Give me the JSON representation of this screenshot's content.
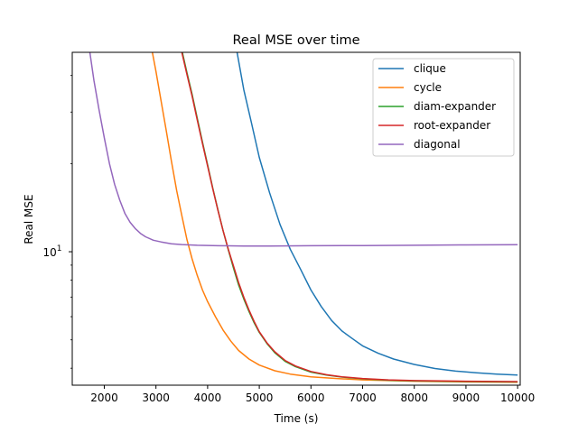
{
  "chart_data": {
    "type": "line",
    "title": "Real MSE over time",
    "xlabel": "Time (s)",
    "ylabel": "Real MSE",
    "xlim": [
      1380,
      10050
    ],
    "ylim": [
      3.5,
      48
    ],
    "yscale": "log",
    "grid": false,
    "legend_position": "top-right",
    "x_ticks": [
      {
        "value": 2000,
        "label": "2000"
      },
      {
        "value": 3000,
        "label": "3000"
      },
      {
        "value": 4000,
        "label": "4000"
      },
      {
        "value": 5000,
        "label": "5000"
      },
      {
        "value": 6000,
        "label": "6000"
      },
      {
        "value": 7000,
        "label": "7000"
      },
      {
        "value": 8000,
        "label": "8000"
      },
      {
        "value": 9000,
        "label": "9000"
      },
      {
        "value": 10000,
        "label": "10000"
      }
    ],
    "y_ticks": [
      {
        "value": 10,
        "label": "10",
        "superscript": "1"
      }
    ],
    "series": [
      {
        "name": "clique",
        "color": "#1f77b4",
        "x": [
          4570,
          4700,
          4850,
          5000,
          5200,
          5400,
          5600,
          5800,
          6000,
          6200,
          6400,
          6600,
          6800,
          7000,
          7300,
          7600,
          8000,
          8400,
          8800,
          9200,
          9600,
          10000
        ],
        "y": [
          48,
          35.8,
          27.5,
          21.0,
          15.9,
          12.4,
          10.2,
          8.7,
          7.4,
          6.5,
          5.82,
          5.36,
          5.05,
          4.77,
          4.5,
          4.3,
          4.12,
          3.99,
          3.91,
          3.86,
          3.82,
          3.79
        ]
      },
      {
        "name": "cycle",
        "color": "#ff7f0e",
        "x": [
          2930,
          3000,
          3100,
          3200,
          3300,
          3400,
          3500,
          3600,
          3700,
          3800,
          3900,
          4000,
          4150,
          4300,
          4450,
          4600,
          4800,
          5000,
          5300,
          5600,
          6000,
          6500,
          7000,
          7500,
          8000,
          9000,
          10000
        ],
        "y": [
          48,
          41.3,
          32.7,
          25.9,
          20.4,
          16.2,
          13.3,
          11.0,
          9.45,
          8.3,
          7.4,
          6.75,
          6.0,
          5.4,
          4.95,
          4.6,
          4.3,
          4.1,
          3.92,
          3.82,
          3.74,
          3.69,
          3.65,
          3.63,
          3.61,
          3.59,
          3.58
        ]
      },
      {
        "name": "diam-expander",
        "color": "#2ca02c",
        "x": [
          3510,
          3600,
          3700,
          3800,
          3900,
          4000,
          4100,
          4200,
          4300,
          4400,
          4500,
          4600,
          4700,
          4800,
          4900,
          5000,
          5150,
          5300,
          5500,
          5700,
          6000,
          6300,
          6600,
          7000,
          7500,
          8000,
          9000,
          10000
        ],
        "y": [
          48,
          40.9,
          34.5,
          28.6,
          23.7,
          19.8,
          16.5,
          13.9,
          11.8,
          10.15,
          8.8,
          7.7,
          6.9,
          6.25,
          5.72,
          5.3,
          4.85,
          4.52,
          4.22,
          4.05,
          3.88,
          3.79,
          3.73,
          3.68,
          3.64,
          3.62,
          3.6,
          3.59
        ]
      },
      {
        "name": "root-expander",
        "color": "#d62728",
        "x": [
          3500,
          3600,
          3700,
          3800,
          3900,
          4000,
          4100,
          4200,
          4300,
          4400,
          4500,
          4600,
          4700,
          4800,
          4900,
          5000,
          5150,
          5300,
          5500,
          5700,
          6000,
          6300,
          6600,
          7000,
          7500,
          8000,
          9000,
          10000
        ],
        "y": [
          48,
          40.3,
          34.0,
          28.2,
          23.4,
          19.6,
          16.4,
          13.85,
          11.8,
          10.2,
          8.95,
          7.85,
          7.0,
          6.32,
          5.78,
          5.33,
          4.88,
          4.55,
          4.25,
          4.07,
          3.9,
          3.8,
          3.74,
          3.69,
          3.65,
          3.63,
          3.61,
          3.6
        ]
      },
      {
        "name": "diagonal",
        "color": "#9467bd",
        "x": [
          1720,
          1800,
          1900,
          2000,
          2100,
          2200,
          2300,
          2400,
          2500,
          2600,
          2700,
          2800,
          2950,
          3100,
          3300,
          3500,
          3800,
          4200,
          4700,
          5200,
          6000,
          7000,
          8000,
          9000,
          10000
        ],
        "y": [
          48,
          38.5,
          30.5,
          24.5,
          20.0,
          17.0,
          15.0,
          13.5,
          12.6,
          12.0,
          11.55,
          11.25,
          10.95,
          10.8,
          10.65,
          10.58,
          10.52,
          10.48,
          10.46,
          10.46,
          10.48,
          10.5,
          10.52,
          10.55,
          10.57
        ]
      }
    ]
  }
}
